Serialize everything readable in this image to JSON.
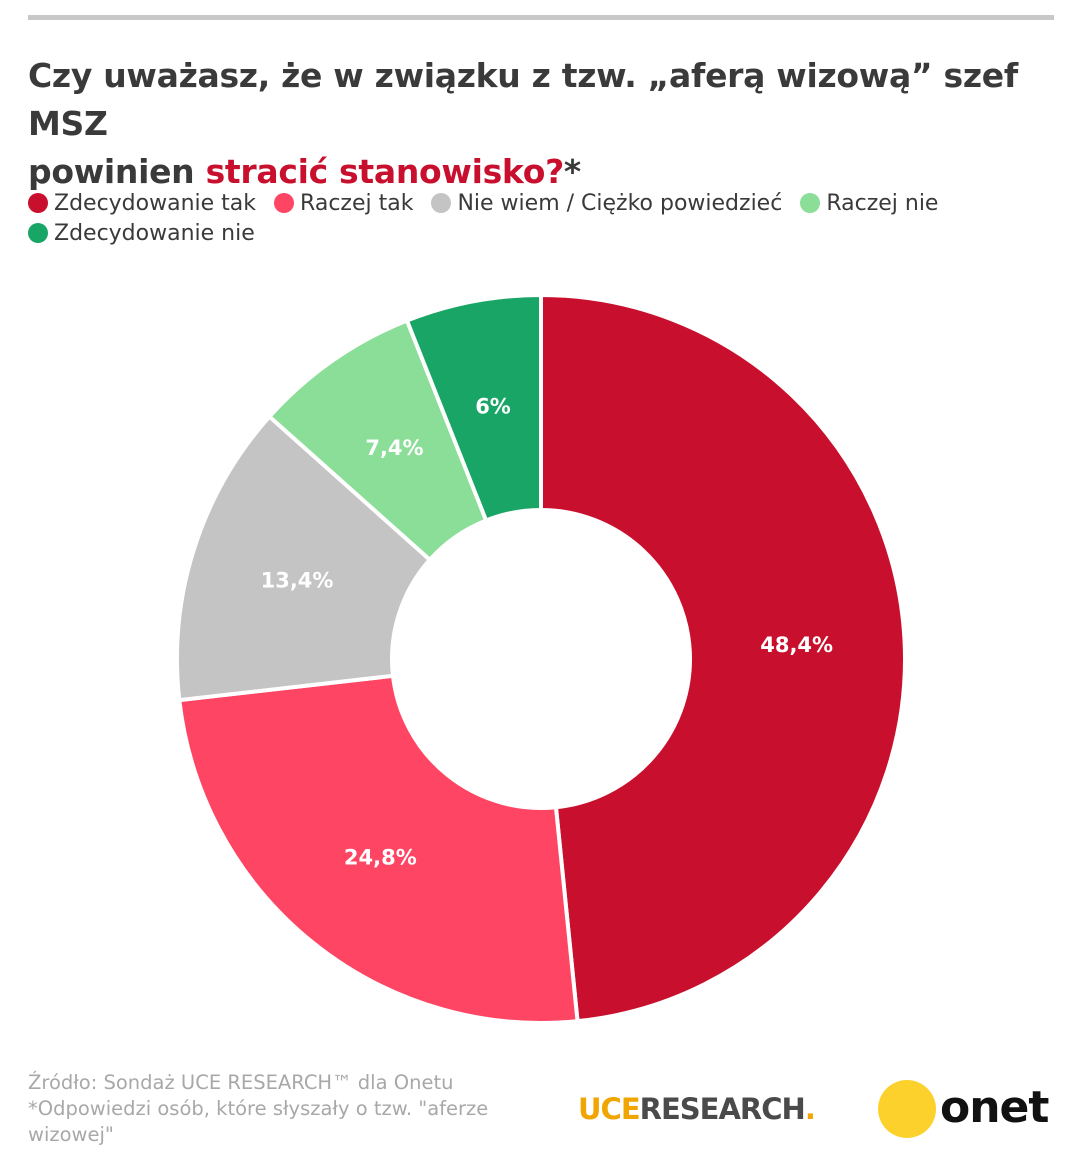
{
  "title": {
    "line1": "Czy uważasz, że w związku z tzw. „aferą wizową” szef MSZ",
    "line2_prefix": "powinien ",
    "line2_highlight": "stracić stanowisko?",
    "line2_suffix": "*"
  },
  "colors": {
    "zdecydowanie_tak": "#c8102e",
    "raczej_tak": "#ff4564",
    "nie_wiem": "#c4c4c4",
    "raczej_nie": "#8ade98",
    "zdecydowanie_nie": "#18a565",
    "title_highlight": "#c8102e"
  },
  "chart_data": {
    "type": "pie",
    "donut": true,
    "categories": [
      "Zdecydowanie tak",
      "Raczej tak",
      "Nie wiem / Ciężko powiedzieć",
      "Raczej nie",
      "Zdecydowanie nie"
    ],
    "values": [
      48.4,
      24.8,
      13.4,
      7.4,
      6
    ],
    "data_labels": [
      "48,4%",
      "24,8%",
      "13,4%",
      "7,4%",
      "6%"
    ],
    "legend_position": "top-left"
  },
  "footer": {
    "source": "Źródło: Sondaż UCE RESEARCH™ dla Onetu",
    "note": "*Odpowiedzi osób, które słyszały o tzw. \"aferze wizowej\""
  },
  "logos": {
    "uce_part1": "UCE",
    "uce_part2": "RESEARCH",
    "uce_dot": ".",
    "onet": "onet"
  }
}
